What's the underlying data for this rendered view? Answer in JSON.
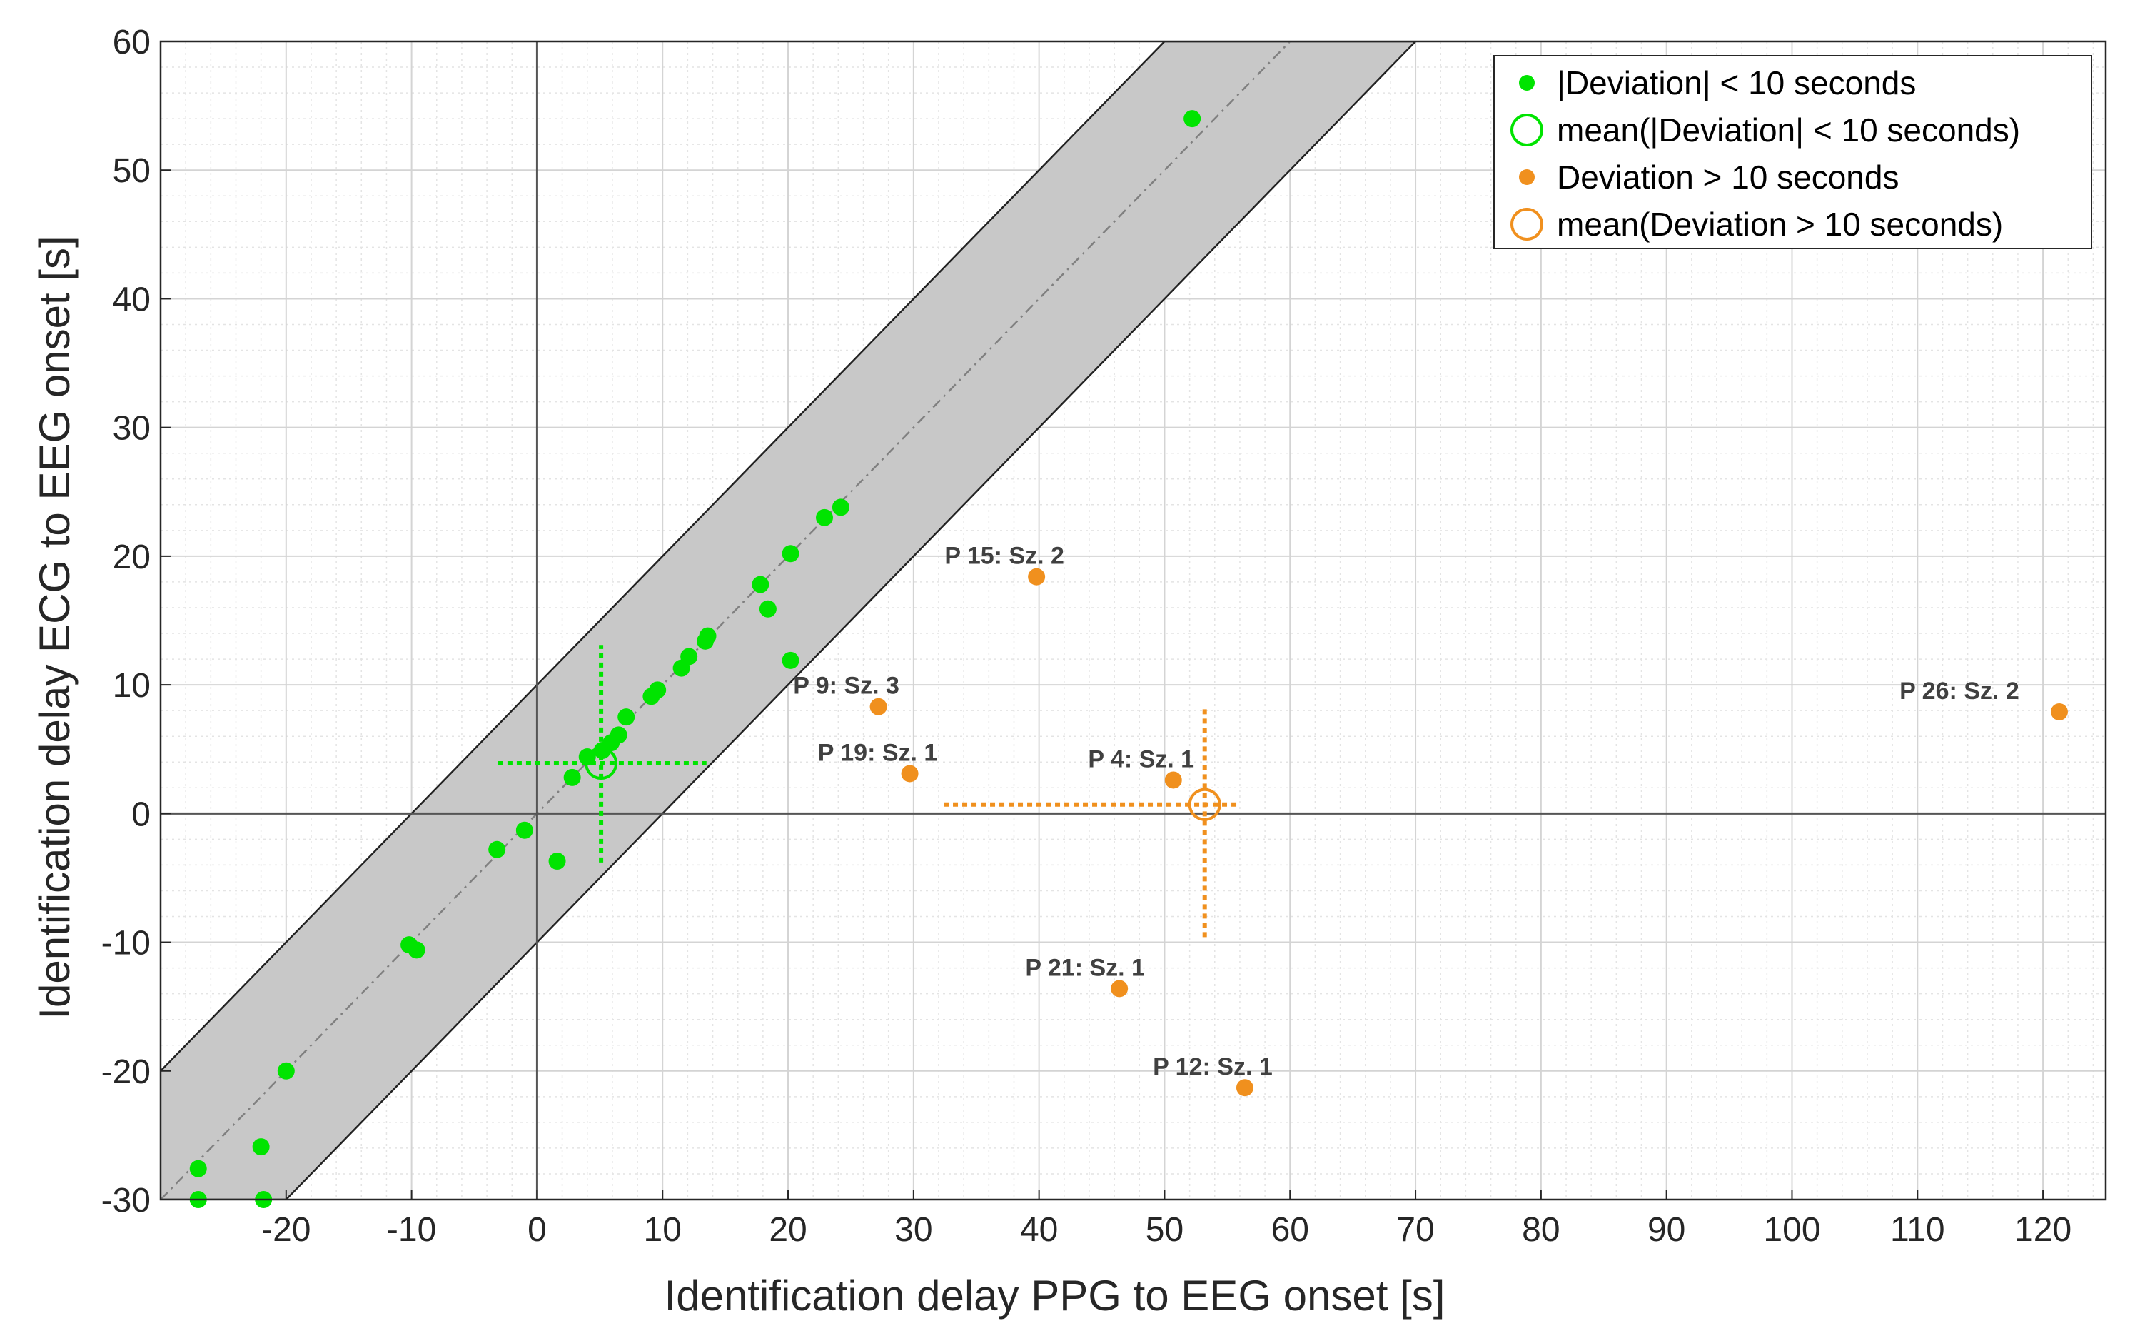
{
  "chart_data": {
    "type": "scatter",
    "xlabel": "Identification delay PPG to EEG onset [s]",
    "ylabel": "Identification delay ECG to EEG onset [s]",
    "xlim": [
      -30,
      125
    ],
    "ylim": [
      -30,
      60
    ],
    "x_ticks": [
      -20,
      -10,
      0,
      10,
      20,
      30,
      40,
      50,
      60,
      70,
      80,
      90,
      100,
      110,
      120
    ],
    "y_ticks": [
      -30,
      -20,
      -10,
      0,
      10,
      20,
      30,
      40,
      50,
      60
    ],
    "grid": true,
    "band_half_width": 10,
    "colors": {
      "within": "#00e400",
      "outside": "#f0901e",
      "band_fill": "#c8c8c8",
      "identity_line": "#808080"
    },
    "legend": {
      "placement": "top-right",
      "entries": [
        "|Deviation| < 10 seconds",
        "mean(|Deviation| < 10 seconds)",
        "Deviation > 10 seconds",
        "mean(Deviation > 10 seconds)"
      ]
    },
    "series": [
      {
        "name": "|Deviation| < 10 seconds",
        "color": "#00e400",
        "points": [
          {
            "x": 52.2,
            "y": 54.0
          },
          {
            "x": 24.2,
            "y": 23.8
          },
          {
            "x": 22.9,
            "y": 23.0
          },
          {
            "x": 20.2,
            "y": 20.2
          },
          {
            "x": 17.8,
            "y": 17.8
          },
          {
            "x": 18.4,
            "y": 15.9
          },
          {
            "x": 13.6,
            "y": 13.8
          },
          {
            "x": 13.4,
            "y": 13.4
          },
          {
            "x": 12.1,
            "y": 12.2
          },
          {
            "x": 11.5,
            "y": 11.3
          },
          {
            "x": 20.2,
            "y": 11.9
          },
          {
            "x": 9.6,
            "y": 9.6
          },
          {
            "x": 9.1,
            "y": 9.1
          },
          {
            "x": 7.1,
            "y": 7.5
          },
          {
            "x": 6.5,
            "y": 6.1
          },
          {
            "x": 5.9,
            "y": 5.5
          },
          {
            "x": 5.2,
            "y": 4.9
          },
          {
            "x": 4.0,
            "y": 4.4
          },
          {
            "x": 2.8,
            "y": 2.8
          },
          {
            "x": -1.0,
            "y": -1.3
          },
          {
            "x": 1.6,
            "y": -3.7
          },
          {
            "x": -3.2,
            "y": -2.8
          },
          {
            "x": -10.2,
            "y": -10.2
          },
          {
            "x": -9.6,
            "y": -10.6
          },
          {
            "x": -20.0,
            "y": -20.0
          },
          {
            "x": -22.0,
            "y": -25.9
          },
          {
            "x": -27.0,
            "y": -27.6
          },
          {
            "x": -27.0,
            "y": -30.0
          },
          {
            "x": -21.8,
            "y": -30.0
          }
        ]
      },
      {
        "name": "Deviation > 10 seconds",
        "color": "#f0901e",
        "points": [
          {
            "x": 39.8,
            "y": 18.4,
            "label": "P 15: Sz. 2"
          },
          {
            "x": 27.2,
            "y": 8.3,
            "label": "P 9: Sz. 3"
          },
          {
            "x": 29.7,
            "y": 3.1,
            "label": "P 19: Sz. 1"
          },
          {
            "x": 50.7,
            "y": 2.6,
            "label": "P 4: Sz. 1"
          },
          {
            "x": 46.4,
            "y": -13.6,
            "label": "P 21: Sz. 1"
          },
          {
            "x": 56.4,
            "y": -21.3,
            "label": "P 12: Sz. 1"
          },
          {
            "x": 121.3,
            "y": 7.9,
            "label": "P 26: Sz. 2"
          }
        ]
      }
    ],
    "means": [
      {
        "name": "mean(|Deviation| < 10 seconds)",
        "color": "#00e400",
        "x": 5.1,
        "y": 3.9,
        "x_range": [
          -3.1,
          13.5
        ],
        "y_range": [
          -3.8,
          13.1
        ]
      },
      {
        "name": "mean(Deviation > 10 seconds)",
        "color": "#f0901e",
        "x": 53.2,
        "y": 0.7,
        "x_range": [
          32.4,
          55.9
        ],
        "y_range": [
          -9.6,
          8.1
        ]
      }
    ]
  }
}
